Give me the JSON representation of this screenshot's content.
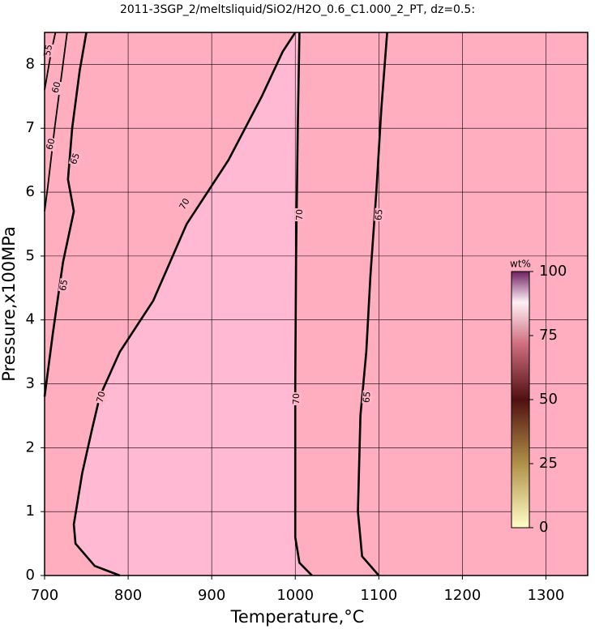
{
  "chart_data": {
    "type": "contour",
    "title": "2011-3SGP_2/meltsliquid/SiO2/H2O_0.6_C1.000_2_PT, dz=0.5:",
    "x_label": "Temperature,°C",
    "y_label": "Pressure,x100MPa",
    "xlim": [
      700,
      1350
    ],
    "ylim": [
      0,
      8.5
    ],
    "xticks": [
      700,
      800,
      900,
      1000,
      1100,
      1200,
      1300
    ],
    "yticks": [
      0,
      1,
      2,
      3,
      4,
      5,
      6,
      7,
      8
    ],
    "grid": true,
    "contours": [
      {
        "level": 55,
        "x": [
          700,
          708,
          713
        ],
        "y": [
          7.6,
          8.2,
          8.5
        ]
      },
      {
        "level": 60,
        "x": [
          700,
          704,
          712,
          720,
          727
        ],
        "y": [
          5.7,
          6.1,
          7.0,
          7.8,
          8.5
        ]
      },
      {
        "level": 65,
        "x": [
          700,
          710,
          722,
          735,
          728,
          733,
          742,
          750
        ],
        "y": [
          2.8,
          3.8,
          4.9,
          5.7,
          6.2,
          7.0,
          7.9,
          8.5
        ]
      },
      {
        "level": 70,
        "x": [
          790,
          760,
          737,
          735,
          745,
          757,
          766,
          790,
          830,
          870,
          920,
          960,
          985,
          1000
        ],
        "y": [
          0,
          0.15,
          0.5,
          0.8,
          1.6,
          2.3,
          2.8,
          3.5,
          4.3,
          5.5,
          6.5,
          7.5,
          8.2,
          8.5
        ]
      },
      {
        "level": 70,
        "x": [
          1005,
          1003,
          1001,
          1000,
          1000,
          1005,
          1020
        ],
        "y": [
          8.5,
          7.0,
          5.0,
          3.0,
          0.6,
          0.2,
          0
        ]
      },
      {
        "level": 65,
        "x": [
          1110,
          1103,
          1097,
          1090,
          1085,
          1078,
          1075,
          1080,
          1100
        ],
        "y": [
          8.5,
          7.3,
          6.0,
          4.7,
          3.5,
          2.5,
          1.0,
          0.3,
          0
        ]
      }
    ],
    "colorbar": {
      "label": "wt%",
      "lim": [
        0,
        100
      ],
      "ticks": [
        0,
        25,
        50,
        75,
        100
      ]
    }
  }
}
